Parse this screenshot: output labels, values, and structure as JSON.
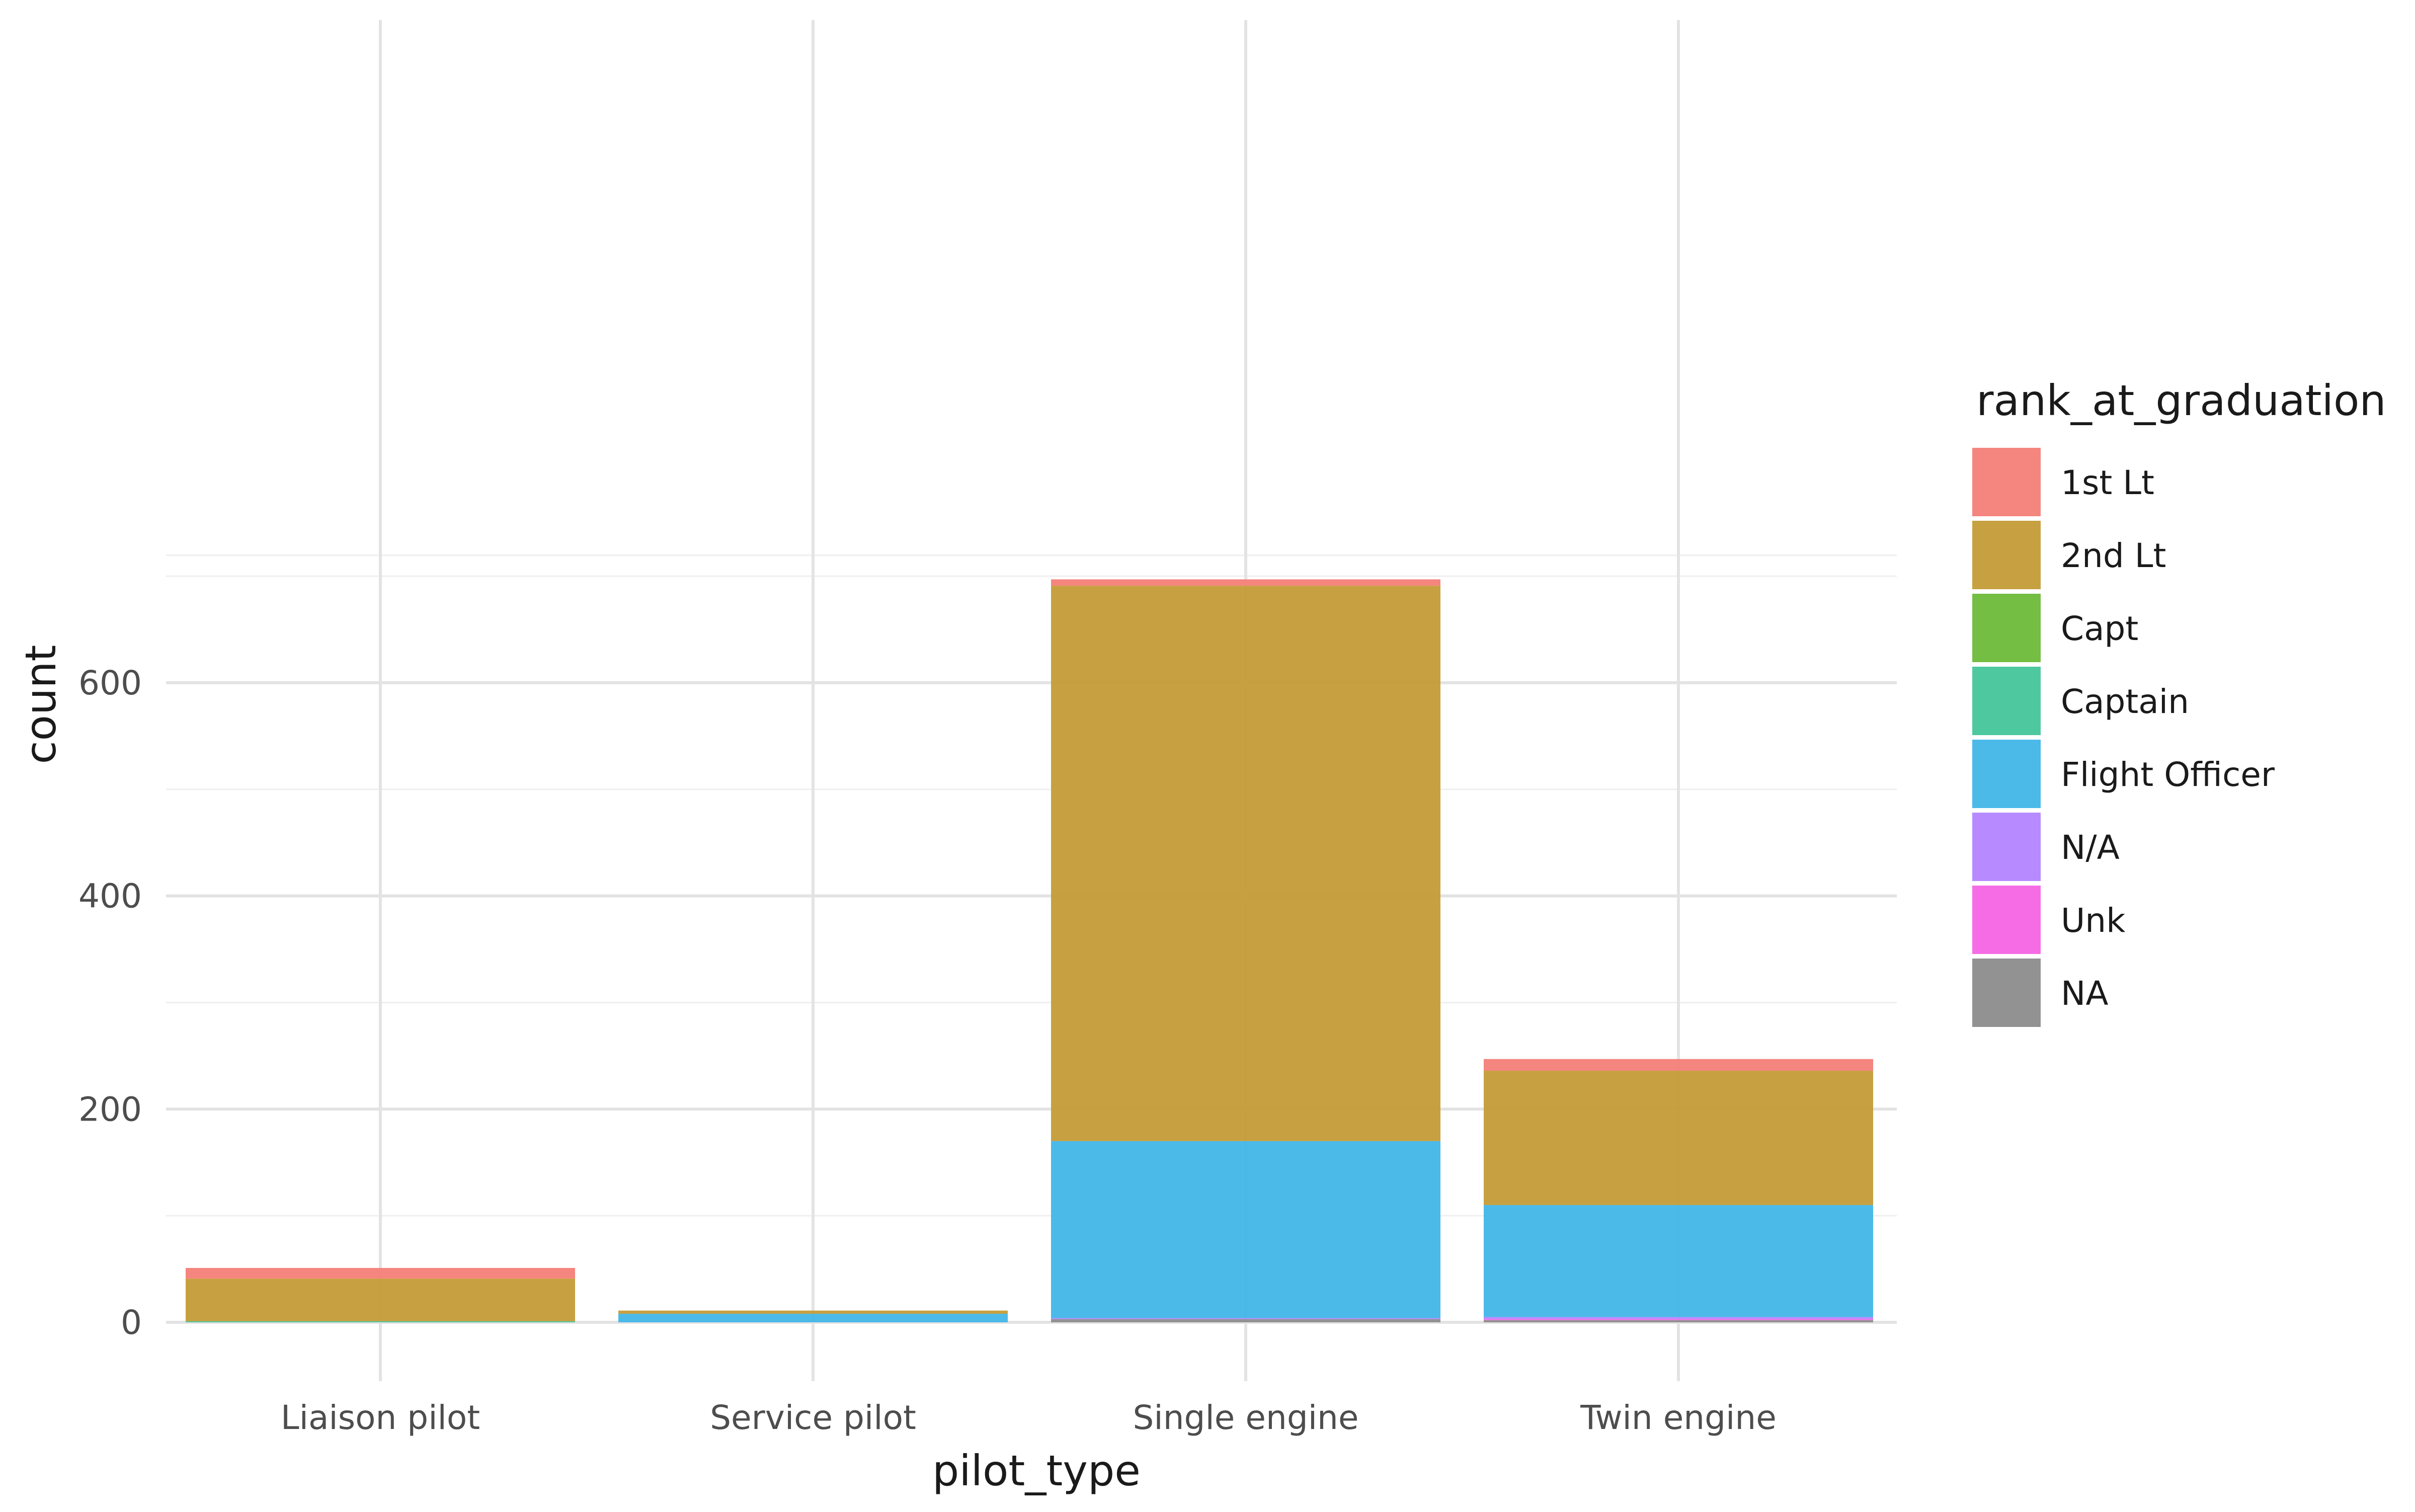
{
  "chart_data": {
    "type": "bar",
    "stacked": true,
    "categories": [
      "Liaison pilot",
      "Service pilot",
      "Single engine",
      "Twin engine"
    ],
    "xlabel": "pilot_type",
    "ylabel": "count",
    "ylim": [
      0,
      720
    ],
    "y_ticks": [
      0,
      200,
      400,
      600
    ],
    "grid": true,
    "legend": {
      "title": "rank_at_graduation",
      "position": "right"
    },
    "series": [
      {
        "name": "NA",
        "color": "#8c8c8c",
        "values": [
          0,
          0,
          3,
          2
        ]
      },
      {
        "name": "Unk",
        "color": "#f564e3",
        "values": [
          0,
          0,
          0,
          1
        ]
      },
      {
        "name": "N/A",
        "color": "#b385ff",
        "values": [
          0,
          0,
          1,
          2
        ]
      },
      {
        "name": "Flight Officer",
        "color": "#41b6e8",
        "values": [
          0,
          8,
          166,
          105
        ]
      },
      {
        "name": "Captain",
        "color": "#45c59a",
        "values": [
          1,
          0,
          0,
          0
        ]
      },
      {
        "name": "Capt",
        "color": "#6dbb3a",
        "values": [
          0,
          0,
          0,
          0
        ]
      },
      {
        "name": "2nd Lt",
        "color": "#c49c37",
        "values": [
          40,
          3,
          521,
          126
        ]
      },
      {
        "name": "1st Lt",
        "color": "#f47e78",
        "values": [
          10,
          0,
          6,
          11
        ]
      }
    ],
    "legend_order": [
      "1st Lt",
      "2nd Lt",
      "Capt",
      "Captain",
      "Flight Officer",
      "N/A",
      "Unk",
      "NA"
    ]
  }
}
